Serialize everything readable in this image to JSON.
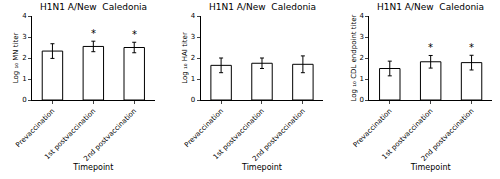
{
  "chart_data": [
    {
      "type": "bar",
      "title": "H1N1 A/New  Caledonia",
      "xlabel": "Timepoint",
      "ylabel": "Log ₁₀ MN titer",
      "categories": [
        "Prevaccination",
        "1st postvaccination",
        "2nd postvaccination"
      ],
      "values": [
        2.33,
        2.55,
        2.5
      ],
      "errors": [
        0.35,
        0.25,
        0.25
      ],
      "color": "#ffffff",
      "ylim": [
        0,
        4
      ],
      "yticks": [
        0,
        1,
        2,
        3,
        4
      ],
      "grid": false,
      "annotations": [
        {
          "category": "1st postvaccination",
          "text": "*"
        },
        {
          "category": "2nd postvaccination",
          "text": "*"
        }
      ]
    },
    {
      "type": "bar",
      "title": "H1N1 A/New  Caledonia",
      "xlabel": "Timepoint",
      "ylabel": "Log ₁₀ HAI titer",
      "categories": [
        "Prevaccination",
        "1st postvaccination",
        "2nd postvaccination"
      ],
      "values": [
        1.65,
        1.75,
        1.7
      ],
      "errors": [
        0.35,
        0.25,
        0.4
      ],
      "color": "#ffffff",
      "ylim": [
        0,
        4
      ],
      "yticks": [
        0,
        1,
        2,
        3,
        4
      ],
      "grid": false
    },
    {
      "type": "bar",
      "title": "H1N1 A/New  Caledonia",
      "xlabel": "Timepoint",
      "ylabel": "Log ₁₀ CDL endpoint titer",
      "categories": [
        "Prevaccination",
        "1st postvaccination",
        "2nd postvaccination"
      ],
      "values": [
        1.5,
        1.82,
        1.78
      ],
      "errors": [
        0.35,
        0.3,
        0.35
      ],
      "color": "#ffffff",
      "ylim": [
        0,
        4
      ],
      "yticks": [
        0,
        1,
        2,
        3,
        4
      ],
      "grid": false,
      "annotations": [
        {
          "category": "1st postvaccination",
          "text": "*"
        },
        {
          "category": "2nd postvaccination",
          "text": "*"
        }
      ]
    }
  ]
}
